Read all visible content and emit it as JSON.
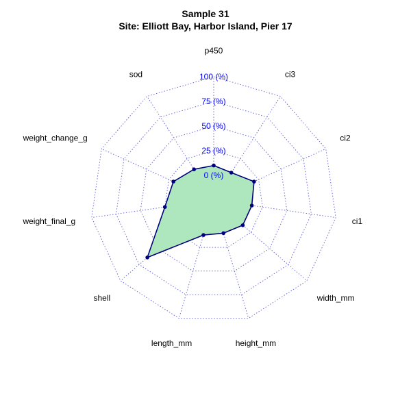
{
  "title_line1": "Sample 31",
  "title_line2": "Site: Elliott Bay, Harbor Island, Pier 17",
  "chart_data": {
    "type": "radar",
    "axes": [
      "p450",
      "ci3",
      "ci2",
      "ci1",
      "width_mm",
      "height_mm",
      "length_mm",
      "shell",
      "weight_final_g",
      "weight_change_g",
      "sod"
    ],
    "values": [
      10,
      8,
      20,
      14,
      14,
      10,
      12,
      64,
      25,
      20,
      12
    ],
    "rlim": [
      0,
      100
    ],
    "unit": "(%)",
    "ticks": [
      "0 (%)",
      "25 (%)",
      "50 (%)",
      "75 (%)",
      "100 (%)"
    ],
    "grid_levels": 5,
    "grid": true,
    "colors": {
      "fill": "#aee6bd",
      "line": "#00007f",
      "point": "#00007f",
      "grid": "#6b6bd6",
      "tick_text": "#0000ff"
    }
  }
}
